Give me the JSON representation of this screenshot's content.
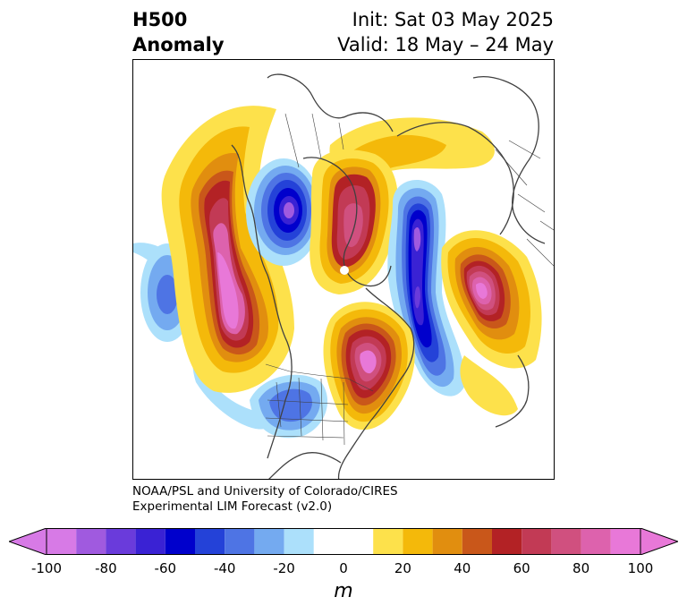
{
  "title": {
    "left_line1": "H500",
    "left_line2": "Anomaly",
    "right_line1": "Init: Sat 03 May 2025",
    "right_line2": "Valid: 18 May – 24 May"
  },
  "credit": {
    "line1": "NOAA/PSL and University of Colorado/CIRES",
    "line2": "Experimental LIM Forecast (v2.0)"
  },
  "colorbar": {
    "unit": "m",
    "ticks": [
      "-100",
      "-80",
      "-60",
      "-40",
      "-20",
      "0",
      "20",
      "40",
      "60",
      "80",
      "100"
    ],
    "bins": [
      {
        "from": -100,
        "to": -90,
        "color": "#d77ae6"
      },
      {
        "from": -90,
        "to": -80,
        "color": "#a05adf"
      },
      {
        "from": -80,
        "to": -70,
        "color": "#6a3bdb"
      },
      {
        "from": -70,
        "to": -60,
        "color": "#3a22d4"
      },
      {
        "from": -60,
        "to": -50,
        "color": "#0000cc"
      },
      {
        "from": -50,
        "to": -40,
        "color": "#2442d8"
      },
      {
        "from": -40,
        "to": -30,
        "color": "#4e74e4"
      },
      {
        "from": -30,
        "to": -20,
        "color": "#74aaf0"
      },
      {
        "from": -20,
        "to": -10,
        "color": "#ace0fb"
      },
      {
        "from": -10,
        "to": 10,
        "color": "#ffffff"
      },
      {
        "from": 10,
        "to": 20,
        "color": "#fde14b"
      },
      {
        "from": 20,
        "to": 30,
        "color": "#f4b90a"
      },
      {
        "from": 30,
        "to": 40,
        "color": "#e18e0f"
      },
      {
        "from": 40,
        "to": 50,
        "color": "#c9571a"
      },
      {
        "from": 50,
        "to": 60,
        "color": "#b32225"
      },
      {
        "from": 60,
        "to": 70,
        "color": "#c23a55"
      },
      {
        "from": 70,
        "to": 80,
        "color": "#d0507f"
      },
      {
        "from": 80,
        "to": 90,
        "color": "#dd62ad"
      },
      {
        "from": 90,
        "to": 100,
        "color": "#e878d8"
      }
    ],
    "extend_low_color": "#d77ae6",
    "extend_high_color": "#e878d8"
  },
  "map": {
    "projection": "polar stereographic, North America / North Atlantic",
    "anomalies": [
      {
        "name": "ridge-west-coast",
        "peak": 100
      },
      {
        "name": "trough-hudson-bay-west",
        "peak": -100
      },
      {
        "name": "ridge-hudson-bay",
        "peak": 80
      },
      {
        "name": "trough-greenland",
        "peak": -100
      },
      {
        "name": "ridge-north-atlantic",
        "peak": 100
      },
      {
        "name": "ridge-eastern-us",
        "peak": 100
      },
      {
        "name": "trough-southwest-us",
        "peak": -40
      },
      {
        "name": "trough-pacific",
        "peak": -40
      },
      {
        "name": "ridge-arctic",
        "peak": 30
      }
    ]
  }
}
